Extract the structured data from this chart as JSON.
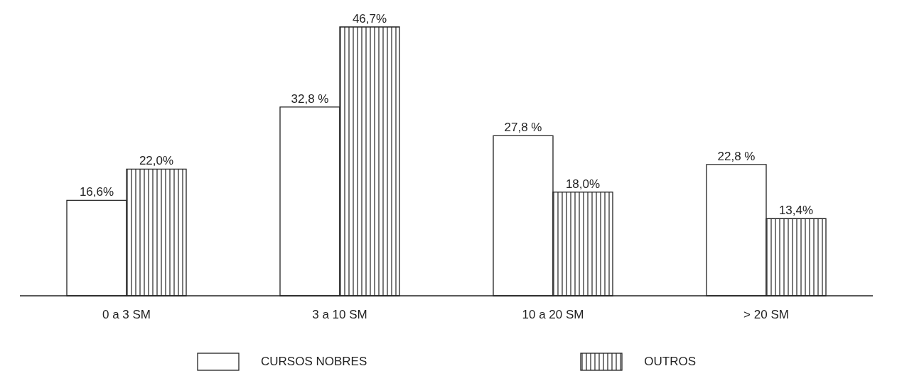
{
  "chart_data": {
    "type": "bar",
    "categories": [
      "0 a 3 SM",
      "3 a 10 SM",
      "10 a 20 SM",
      "> 20 SM"
    ],
    "series": [
      {
        "name": "CURSOS NOBRES",
        "color": "#ffffff",
        "values": [
          16.6,
          32.8,
          27.8,
          22.8
        ],
        "value_labels": [
          "16,6%",
          "32,8 %",
          "27,8 %",
          "22,8 %"
        ]
      },
      {
        "name": "OUTROS",
        "color": "#222222",
        "values": [
          22.0,
          46.7,
          18.0,
          13.4
        ],
        "value_labels": [
          "22,0%",
          "46,7%",
          "18,0%",
          "13,4%"
        ]
      }
    ],
    "legend": "bottom"
  }
}
